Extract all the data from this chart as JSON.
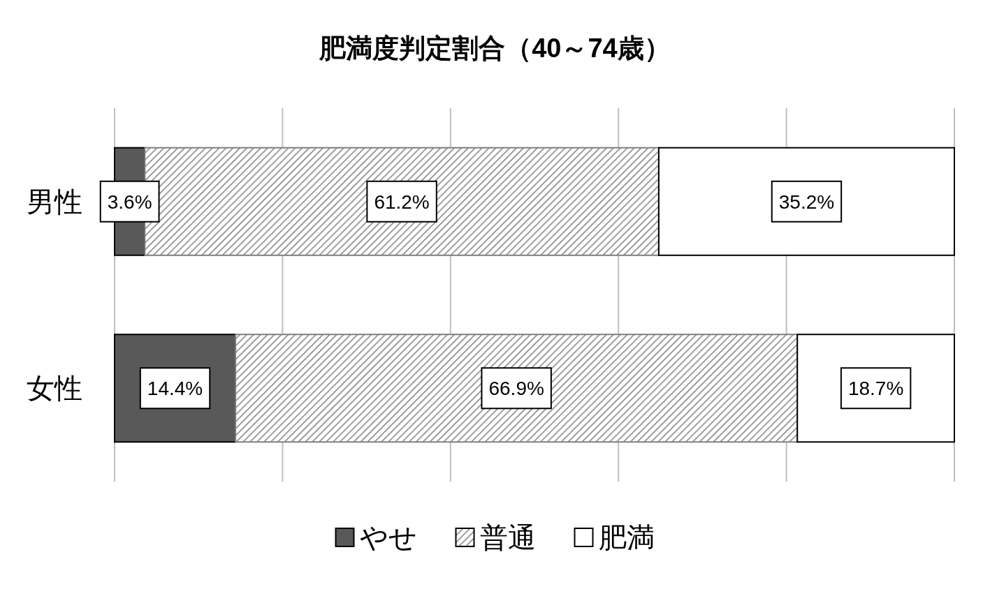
{
  "chart_data": {
    "type": "bar",
    "orientation": "horizontal",
    "stacked": true,
    "title": "肥満度判定割合（40～74歳）",
    "categories": [
      "男性",
      "女性"
    ],
    "xlim": [
      0,
      100
    ],
    "xticks": [
      {
        "value": 0,
        "label": null
      },
      {
        "value": 20,
        "label": null
      },
      {
        "value": 40,
        "label": null
      },
      {
        "value": 60,
        "label": null
      },
      {
        "value": 80,
        "label": null
      },
      {
        "value": 100,
        "label": null
      }
    ],
    "grid": "x",
    "tick_labels": "y",
    "legend": "bottom",
    "series": [
      {
        "name": "やせ",
        "color": "#595959",
        "values": [
          3.6,
          14.4
        ],
        "value_labels": [
          "3.6%",
          "14.4%"
        ]
      },
      {
        "name": "普通",
        "color": "#7f7f7f",
        "values": [
          61.2,
          66.9
        ],
        "value_labels": [
          "61.2%",
          "66.9%"
        ]
      },
      {
        "name": "肥満",
        "color": "#ffffff",
        "values": [
          35.2,
          18.7
        ],
        "value_labels": [
          "35.2%",
          "18.7%"
        ]
      }
    ]
  }
}
